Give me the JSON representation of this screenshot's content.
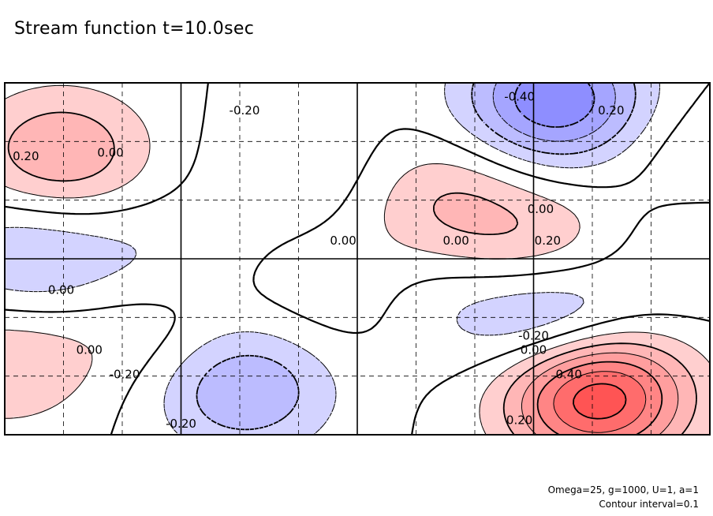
{
  "title": "Stream function t=10.0sec",
  "footer": {
    "params": "Omega=25, g=1000, U=1, a=1",
    "interval": "Contour interval=0.1"
  },
  "chart_data": {
    "type": "contour",
    "title": "Stream function t=10.0sec",
    "xlabel": "",
    "ylabel": "",
    "contour_interval": 0.1,
    "contour_labels": [
      "0.00",
      "0.20",
      "-0.20",
      "-0.40",
      "0.40"
    ],
    "grid": true,
    "colors": {
      "positive": "#ff3b3b",
      "negative": "#4a4aff",
      "zero_line": "#000000"
    },
    "label_positions": [
      {
        "text": "-0.40",
        "x": 0.73,
        "y": 0.96
      },
      {
        "text": "-0.20",
        "x": 0.34,
        "y": 0.92
      },
      {
        "text": "0.20",
        "x": 0.86,
        "y": 0.92
      },
      {
        "text": "0.20",
        "x": 0.03,
        "y": 0.79
      },
      {
        "text": "0.00",
        "x": 0.15,
        "y": 0.8
      },
      {
        "text": "0.00",
        "x": 0.76,
        "y": 0.64
      },
      {
        "text": "0.20",
        "x": 0.77,
        "y": 0.55
      },
      {
        "text": "0.00",
        "x": 0.64,
        "y": 0.55
      },
      {
        "text": "0.00",
        "x": 0.48,
        "y": 0.55
      },
      {
        "text": "0.00",
        "x": 0.08,
        "y": 0.41
      },
      {
        "text": "-0.20",
        "x": 0.75,
        "y": 0.28
      },
      {
        "text": "0.00",
        "x": 0.75,
        "y": 0.24
      },
      {
        "text": "0.00",
        "x": 0.12,
        "y": 0.24
      },
      {
        "text": "0.40",
        "x": 0.8,
        "y": 0.17
      },
      {
        "text": "-0.20",
        "x": 0.17,
        "y": 0.17
      },
      {
        "text": "0.20",
        "x": 0.73,
        "y": 0.04
      },
      {
        "text": "-0.20",
        "x": 0.25,
        "y": 0.03
      }
    ],
    "features": [
      {
        "sign": "positive",
        "peak": 0.7,
        "x": 0.84,
        "y": 0.11
      },
      {
        "sign": "negative",
        "peak": -0.5,
        "x": 0.78,
        "y": 0.95
      },
      {
        "sign": "negative",
        "peak": -0.3,
        "x": 0.78,
        "y": 0.34
      },
      {
        "sign": "negative",
        "peak": -0.3,
        "x": 0.34,
        "y": 0.13
      },
      {
        "sign": "positive",
        "peak": 0.3,
        "x": 0.08,
        "y": 0.8
      },
      {
        "sign": "positive",
        "peak": 0.2,
        "x": 0.63,
        "y": 0.66
      },
      {
        "sign": "positive",
        "peak": 0.2,
        "x": 0.76,
        "y": 0.52
      },
      {
        "sign": "positive",
        "peak": 0.1,
        "x": 0.49,
        "y": 0.4
      },
      {
        "sign": "negative",
        "peak": -0.2,
        "x": 0.03,
        "y": 0.5
      },
      {
        "sign": "negative",
        "peak": -0.1,
        "x": 0.2,
        "y": 0.5
      },
      {
        "sign": "positive",
        "peak": 0.1,
        "x": 0.2,
        "y": 0.31
      },
      {
        "sign": "positive",
        "peak": 0.2,
        "x": 0.0,
        "y": 0.2
      },
      {
        "sign": "negative",
        "peak": -0.1,
        "x": 0.42,
        "y": 0.76
      },
      {
        "sign": "negative",
        "peak": -0.1,
        "x": 0.6,
        "y": 0.39
      },
      {
        "sign": "negative",
        "peak": -0.1,
        "x": 0.99,
        "y": 0.54
      },
      {
        "sign": "positive",
        "peak": 0.1,
        "x": 0.99,
        "y": 0.78
      }
    ]
  }
}
